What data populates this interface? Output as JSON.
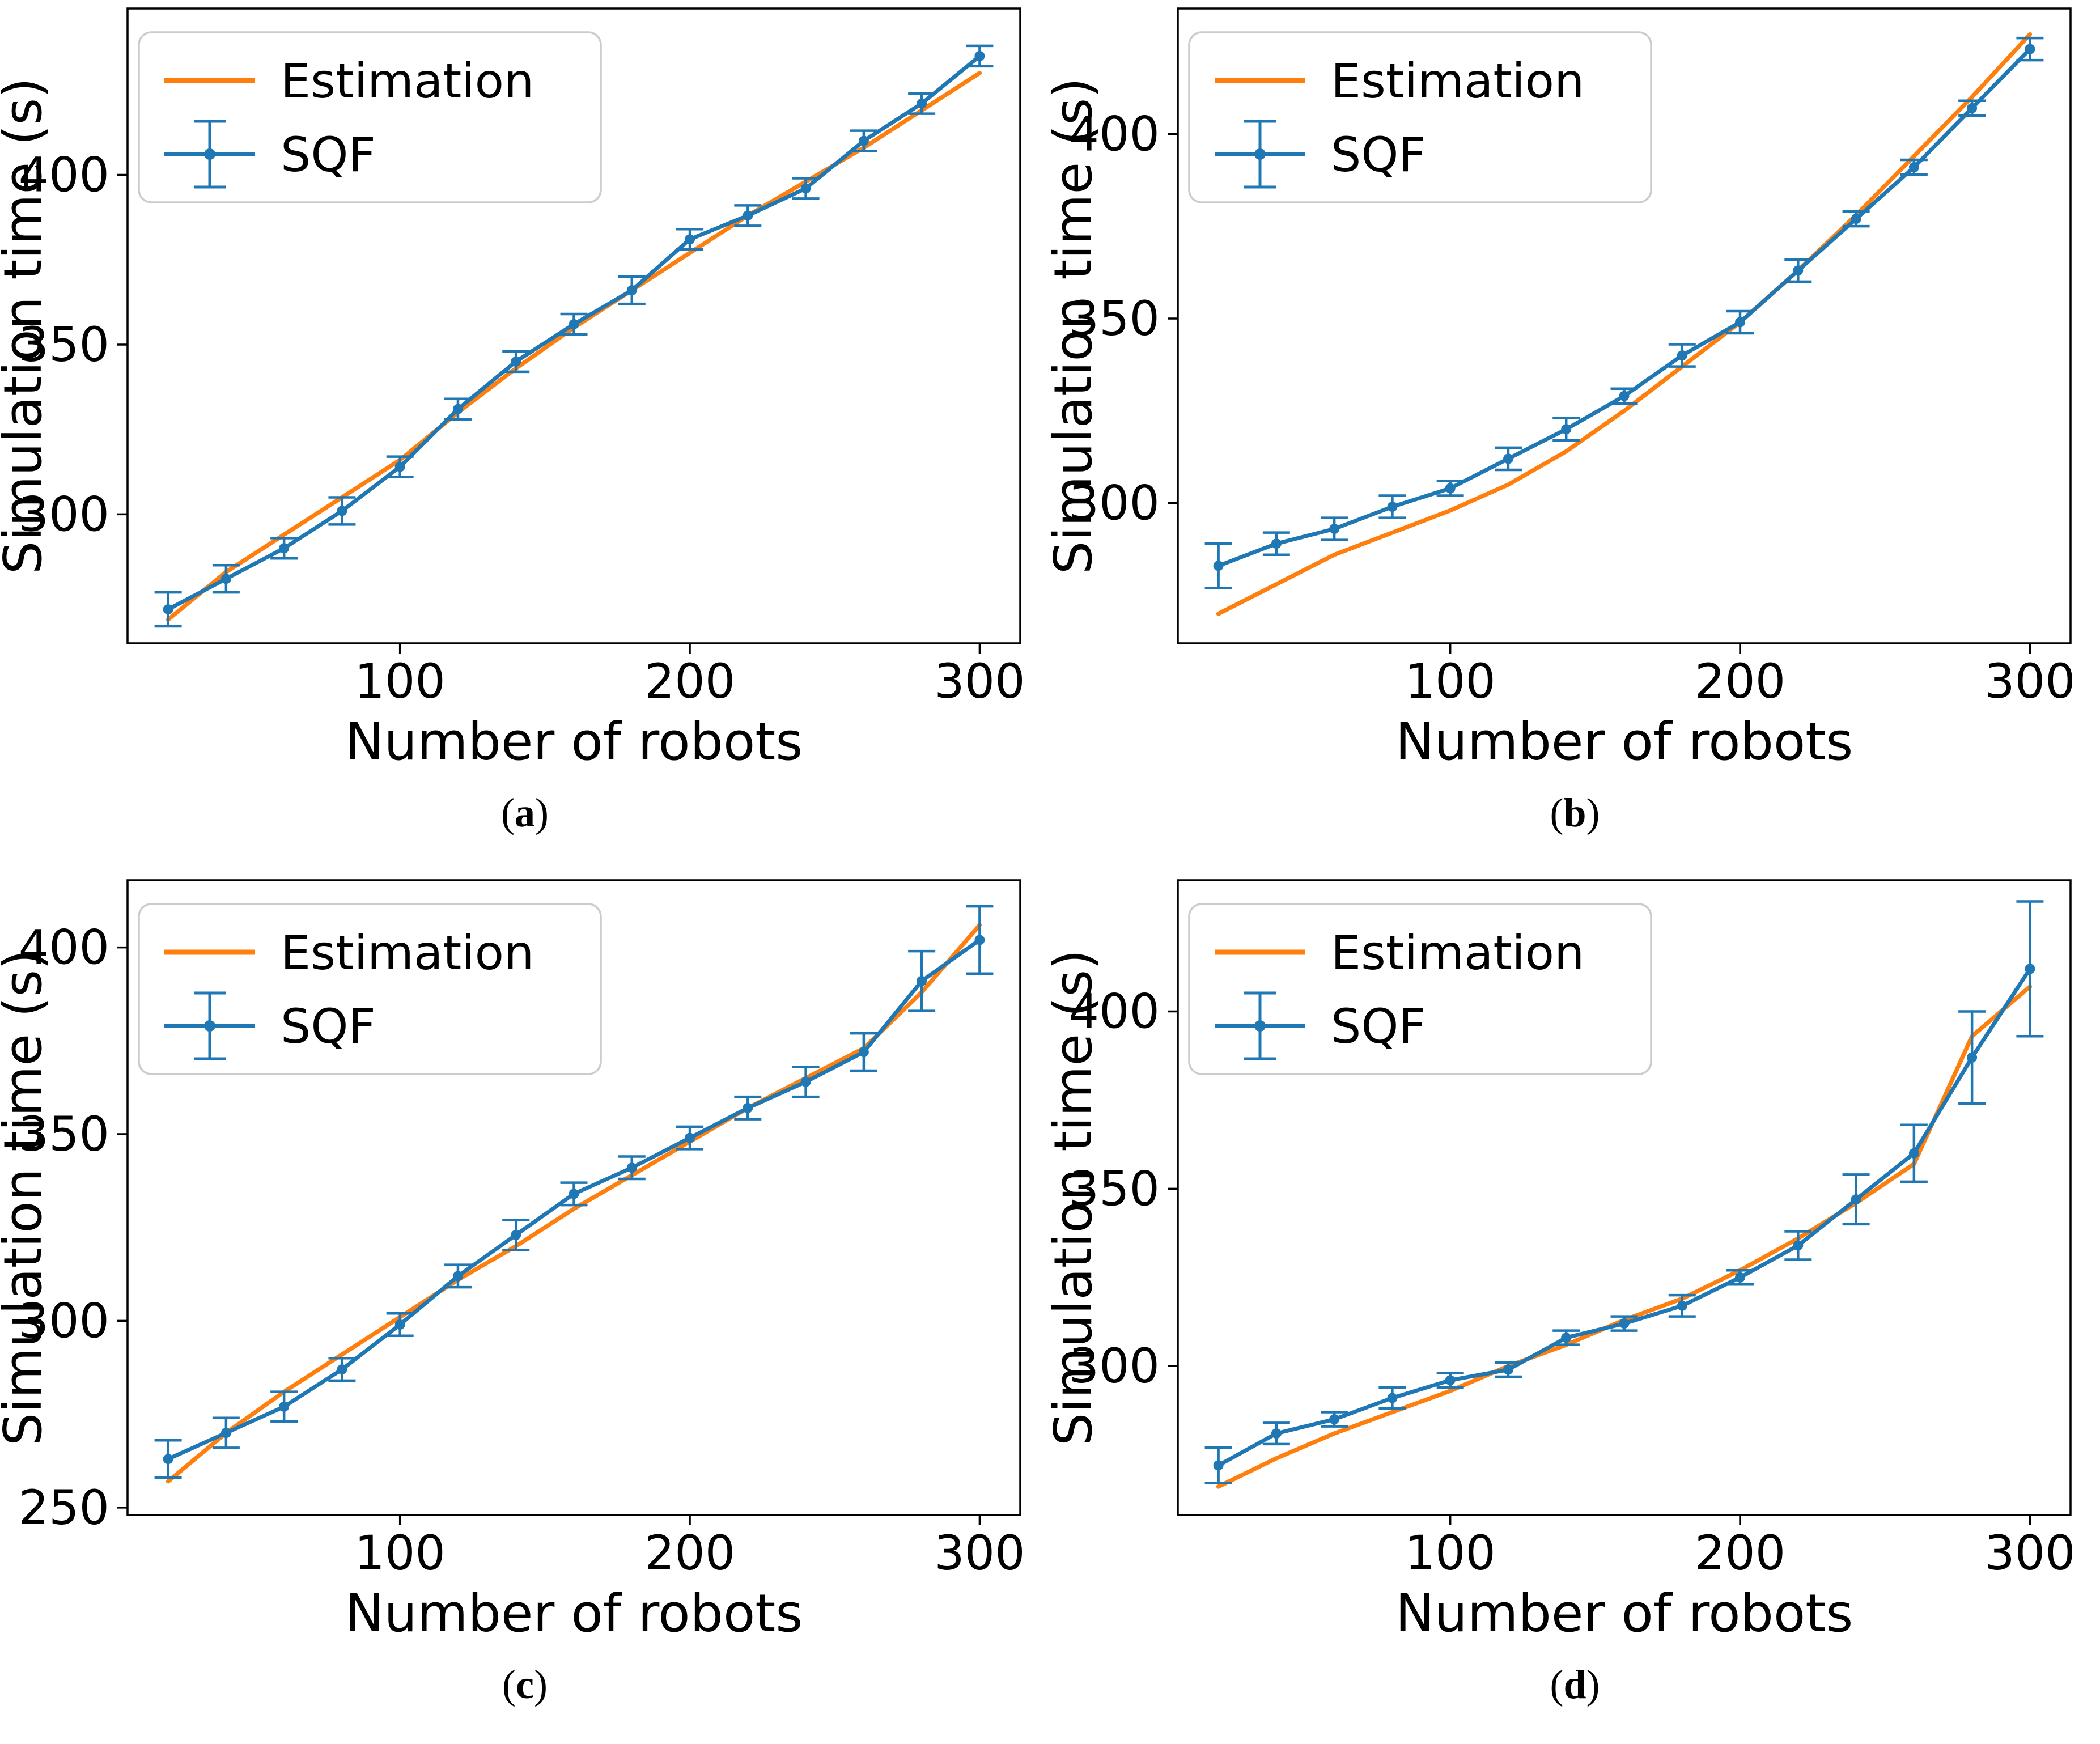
{
  "figure": {
    "xlabel": "Number of robots",
    "ylabel": "Simulation time (s)",
    "legend_entries": [
      "Estimation",
      "SQF"
    ],
    "colors": {
      "estimation": "#ff7f0e",
      "sqf": "#1f77b4",
      "text": "#000000",
      "spine": "#000000",
      "legend_border": "#cccccc",
      "legend_fill": "#ffffff"
    }
  },
  "chart_data": [
    {
      "id": "a",
      "type": "line",
      "caption": {
        "open": "(",
        "letter": "a",
        "close": ")"
      },
      "xlabel": "Number of robots",
      "ylabel": "Simulation time (s)",
      "x": [
        20,
        40,
        60,
        80,
        100,
        120,
        140,
        160,
        180,
        200,
        220,
        240,
        260,
        280,
        300
      ],
      "series": [
        {
          "name": "Estimation",
          "color": "#ff7f0e",
          "values": [
            269,
            283,
            294,
            305,
            316,
            330,
            343,
            355,
            366,
            377,
            388,
            398,
            408,
            419,
            430
          ]
        },
        {
          "name": "SQF",
          "color": "#1f77b4",
          "values": [
            272,
            281,
            290,
            301,
            314,
            331,
            345,
            356,
            366,
            381,
            388,
            396,
            410,
            421,
            435
          ],
          "errors": [
            5,
            4,
            3,
            4,
            3,
            3,
            3,
            3,
            4,
            3,
            3,
            3,
            3,
            3,
            3
          ]
        }
      ],
      "xlim": [
        6,
        314
      ],
      "ylim": [
        262,
        449
      ],
      "x_ticks": [
        100,
        200,
        300
      ],
      "y_ticks": [
        300,
        350,
        400
      ],
      "legend_position": "upper left",
      "grid": false
    },
    {
      "id": "b",
      "type": "line",
      "caption": {
        "open": "(",
        "letter": "b",
        "close": ")"
      },
      "xlabel": "Number of robots",
      "ylabel": "Simulation time (s)",
      "x": [
        20,
        40,
        60,
        80,
        100,
        120,
        140,
        160,
        180,
        200,
        220,
        240,
        260,
        280,
        300
      ],
      "series": [
        {
          "name": "Estimation",
          "color": "#ff7f0e",
          "values": [
            270,
            278,
            286,
            292,
            298,
            305,
            314,
            325,
            337,
            349,
            363,
            378,
            394,
            410,
            427
          ]
        },
        {
          "name": "SQF",
          "color": "#1f77b4",
          "values": [
            283,
            289,
            293,
            299,
            304,
            312,
            320,
            329,
            340,
            349,
            363,
            377,
            391,
            407,
            423
          ],
          "errors": [
            6,
            3,
            3,
            3,
            2,
            3,
            3,
            2,
            3,
            3,
            3,
            2,
            2,
            2,
            3
          ]
        }
      ],
      "xlim": [
        6,
        314
      ],
      "ylim": [
        262,
        434
      ],
      "x_ticks": [
        100,
        200,
        300
      ],
      "y_ticks": [
        300,
        350,
        400
      ],
      "legend_position": "upper left",
      "grid": false
    },
    {
      "id": "c",
      "type": "line",
      "caption": {
        "open": "(",
        "letter": "c",
        "close": ")"
      },
      "xlabel": "Number of robots",
      "ylabel": "Simulation time (s)",
      "x": [
        20,
        40,
        60,
        80,
        100,
        120,
        140,
        160,
        180,
        200,
        220,
        240,
        260,
        280,
        300
      ],
      "series": [
        {
          "name": "Estimation",
          "color": "#ff7f0e",
          "values": [
            257,
            270,
            281,
            291,
            301,
            311,
            320,
            330,
            339,
            348,
            357,
            365,
            373,
            388,
            406
          ]
        },
        {
          "name": "SQF",
          "color": "#1f77b4",
          "values": [
            263,
            270,
            277,
            287,
            299,
            312,
            323,
            334,
            341,
            349,
            357,
            364,
            372,
            391,
            402
          ],
          "errors": [
            5,
            4,
            4,
            3,
            3,
            3,
            4,
            3,
            3,
            3,
            3,
            4,
            5,
            8,
            9
          ]
        }
      ],
      "xlim": [
        6,
        314
      ],
      "ylim": [
        248,
        418
      ],
      "x_ticks": [
        100,
        200,
        300
      ],
      "y_ticks": [
        250,
        300,
        350,
        400
      ],
      "legend_position": "upper left",
      "grid": false
    },
    {
      "id": "d",
      "type": "line",
      "caption": {
        "open": "(",
        "letter": "d",
        "close": ")"
      },
      "xlabel": "Number of robots",
      "ylabel": "Simulation time (s)",
      "x": [
        20,
        40,
        60,
        80,
        100,
        120,
        140,
        160,
        180,
        200,
        220,
        240,
        260,
        280,
        300
      ],
      "series": [
        {
          "name": "Estimation",
          "color": "#ff7f0e",
          "values": [
            266,
            274,
            281,
            287,
            293,
            300,
            306,
            313,
            319,
            327,
            336,
            346,
            357,
            393,
            407
          ]
        },
        {
          "name": "SQF",
          "color": "#1f77b4",
          "values": [
            272,
            281,
            285,
            291,
            296,
            299,
            308,
            312,
            317,
            325,
            334,
            347,
            360,
            387,
            412
          ],
          "errors": [
            5,
            3,
            2,
            3,
            2,
            2,
            2,
            2,
            3,
            2,
            4,
            7,
            8,
            13,
            19
          ]
        }
      ],
      "xlim": [
        6,
        314
      ],
      "ylim": [
        258,
        437
      ],
      "x_ticks": [
        100,
        200,
        300
      ],
      "y_ticks": [
        300,
        350,
        400
      ],
      "legend_position": "upper left",
      "grid": false
    }
  ]
}
